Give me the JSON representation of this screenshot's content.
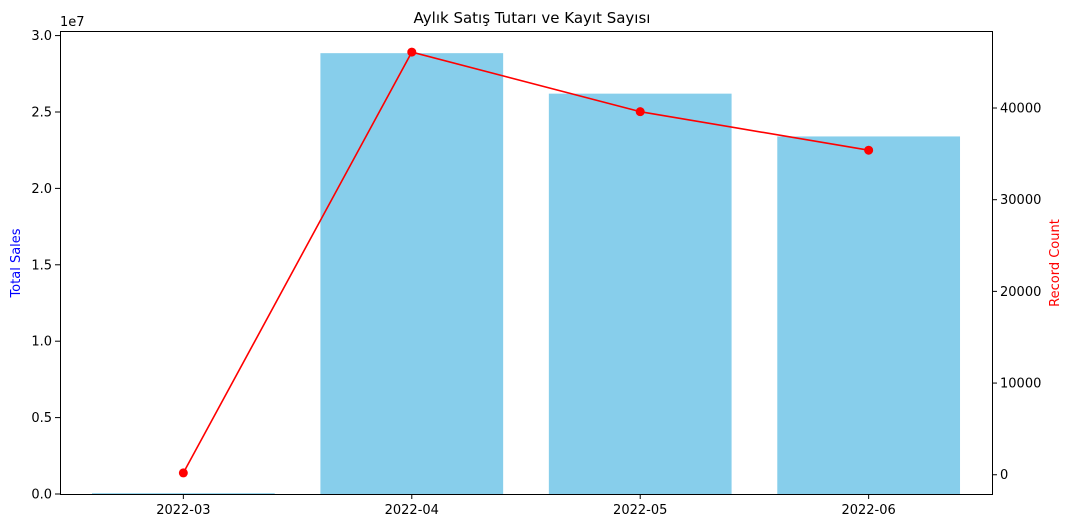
{
  "chart_data": {
    "type": "bar",
    "title": "Aylık Satış Tutarı ve Kayıt Sayısı",
    "categories": [
      "2022-03",
      "2022-04",
      "2022-05",
      "2022-06"
    ],
    "series": [
      {
        "kind": "bar",
        "axis": "left",
        "color": "#87ceeb",
        "values": [
          40000,
          28850000,
          26200000,
          23400000
        ]
      },
      {
        "kind": "line",
        "axis": "right",
        "color": "#ff0000",
        "marker": "circle",
        "values": [
          200,
          46100,
          39600,
          35400
        ]
      }
    ],
    "y_left": {
      "label": "Total Sales",
      "label_color": "#0000ff",
      "offset_text": "1e7",
      "scale": 10000000,
      "range": [
        0,
        30300000
      ],
      "ticks": [
        0,
        5000000,
        10000000,
        15000000,
        20000000,
        25000000,
        30000000
      ],
      "tick_labels": [
        "0.0",
        "0.5",
        "1.0",
        "1.5",
        "2.0",
        "2.5",
        "3.0"
      ]
    },
    "y_right": {
      "label": "Record Count",
      "label_color": "#ff0000",
      "range": [
        -2100,
        48400
      ],
      "ticks": [
        0,
        10000,
        20000,
        30000,
        40000
      ],
      "tick_labels": [
        "0",
        "10000",
        "20000",
        "30000",
        "40000"
      ]
    },
    "grid": false,
    "legend": "none"
  }
}
